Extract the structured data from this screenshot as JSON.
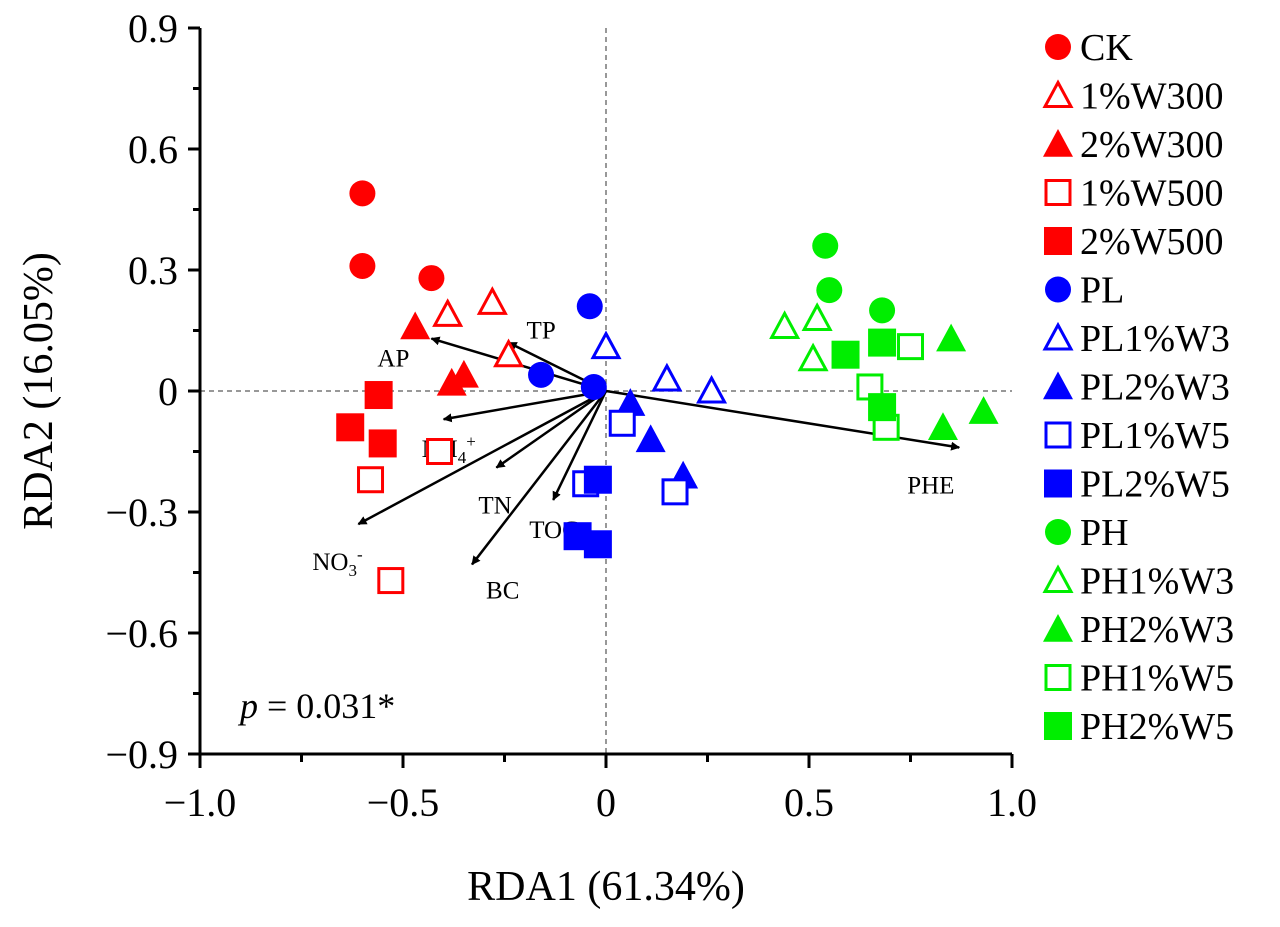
{
  "chart_data": {
    "type": "scatter",
    "xlabel": "RDA1 (61.34%)",
    "ylabel": "RDA2 (16.05%)",
    "xlim": [
      -1.0,
      1.0
    ],
    "ylim": [
      -0.9,
      0.9
    ],
    "xticks": [
      -1.0,
      -0.5,
      0,
      0.5,
      1.0
    ],
    "xtick_labels": [
      "−1.0",
      "−0.5",
      "0",
      "0.5",
      "1.0"
    ],
    "yticks": [
      0.9,
      0.6,
      0.3,
      0,
      -0.3,
      -0.6,
      -0.9
    ],
    "ytick_labels": [
      "0.9",
      "0.6",
      "0.3",
      "0",
      "−0.3",
      "−0.6",
      "−0.9"
    ],
    "zero_lines": true,
    "grid": false,
    "legend": {
      "position": "right"
    },
    "annotation": {
      "italic": "p",
      "rest": " = 0.031*"
    },
    "series": [
      {
        "name": "CK",
        "marker": "circle",
        "filled": true,
        "color": "#ff0000",
        "points": [
          [
            -0.6,
            0.49
          ],
          [
            -0.6,
            0.31
          ],
          [
            -0.43,
            0.28
          ]
        ]
      },
      {
        "name": "1%W300",
        "marker": "triangle",
        "filled": false,
        "color": "#ff0000",
        "points": [
          [
            -0.39,
            0.19
          ],
          [
            -0.28,
            0.22
          ],
          [
            -0.24,
            0.09
          ]
        ]
      },
      {
        "name": "2%W300",
        "marker": "triangle",
        "filled": true,
        "color": "#ff0000",
        "points": [
          [
            -0.47,
            0.16
          ],
          [
            -0.38,
            0.02
          ],
          [
            -0.35,
            0.04
          ]
        ]
      },
      {
        "name": "1%W500",
        "marker": "square",
        "filled": false,
        "color": "#ff0000",
        "points": [
          [
            -0.41,
            -0.15
          ],
          [
            -0.58,
            -0.22
          ],
          [
            -0.53,
            -0.47
          ]
        ]
      },
      {
        "name": "2%W500",
        "marker": "square",
        "filled": true,
        "color": "#ff0000",
        "points": [
          [
            -0.56,
            -0.01
          ],
          [
            -0.63,
            -0.09
          ],
          [
            -0.55,
            -0.13
          ]
        ]
      },
      {
        "name": "PL",
        "marker": "circle",
        "filled": true,
        "color": "#0000ff",
        "points": [
          [
            -0.04,
            0.21
          ],
          [
            -0.16,
            0.04
          ],
          [
            -0.03,
            0.01
          ]
        ]
      },
      {
        "name": "PL1%W3",
        "marker": "triangle",
        "filled": false,
        "color": "#0000ff",
        "points": [
          [
            0.0,
            0.11
          ],
          [
            0.15,
            0.03
          ],
          [
            0.26,
            0.0
          ]
        ]
      },
      {
        "name": "PL2%W3",
        "marker": "triangle",
        "filled": true,
        "color": "#0000ff",
        "points": [
          [
            0.06,
            -0.03
          ],
          [
            0.11,
            -0.12
          ],
          [
            0.19,
            -0.21
          ]
        ]
      },
      {
        "name": "PL1%W5",
        "marker": "square",
        "filled": false,
        "color": "#0000ff",
        "points": [
          [
            0.04,
            -0.08
          ],
          [
            -0.05,
            -0.23
          ],
          [
            0.17,
            -0.25
          ]
        ]
      },
      {
        "name": "PL2%W5",
        "marker": "square",
        "filled": true,
        "color": "#0000ff",
        "points": [
          [
            -0.02,
            -0.22
          ],
          [
            -0.07,
            -0.36
          ],
          [
            -0.02,
            -0.38
          ]
        ]
      },
      {
        "name": "PH",
        "marker": "circle",
        "filled": true,
        "color": "#00ee00",
        "points": [
          [
            0.54,
            0.36
          ],
          [
            0.55,
            0.25
          ],
          [
            0.68,
            0.2
          ]
        ]
      },
      {
        "name": "PH1%W3",
        "marker": "triangle",
        "filled": false,
        "color": "#00ee00",
        "points": [
          [
            0.44,
            0.16
          ],
          [
            0.52,
            0.18
          ],
          [
            0.51,
            0.08
          ]
        ]
      },
      {
        "name": "PH2%W3",
        "marker": "triangle",
        "filled": true,
        "color": "#00ee00",
        "points": [
          [
            0.85,
            0.13
          ],
          [
            0.93,
            -0.05
          ],
          [
            0.83,
            -0.09
          ]
        ]
      },
      {
        "name": "PH1%W5",
        "marker": "square",
        "filled": false,
        "color": "#00ee00",
        "points": [
          [
            0.75,
            0.11
          ],
          [
            0.65,
            0.01
          ],
          [
            0.69,
            -0.09
          ]
        ]
      },
      {
        "name": "PH2%W5",
        "marker": "square",
        "filled": true,
        "color": "#00ee00",
        "points": [
          [
            0.59,
            0.09
          ],
          [
            0.68,
            0.12
          ],
          [
            0.68,
            -0.04
          ]
        ]
      }
    ],
    "arrows": [
      {
        "name": "AP",
        "label": "AP",
        "x": -0.43,
        "y": 0.13
      },
      {
        "name": "TP",
        "label": "TP",
        "x": -0.24,
        "y": 0.12
      },
      {
        "name": "NH4",
        "label": "NH",
        "sub": "4",
        "sup": "+",
        "x": -0.4,
        "y": -0.07
      },
      {
        "name": "TN",
        "label": "TN",
        "x": -0.27,
        "y": -0.19
      },
      {
        "name": "TOC",
        "label": "TOC",
        "x": -0.13,
        "y": -0.27
      },
      {
        "name": "NO3",
        "label": "NO",
        "sub": "3",
        "sup": "-",
        "x": -0.61,
        "y": -0.33
      },
      {
        "name": "BC",
        "label": "BC",
        "x": -0.33,
        "y": -0.43
      },
      {
        "name": "PHE",
        "label": "PHE",
        "x": 0.87,
        "y": -0.14
      }
    ]
  }
}
